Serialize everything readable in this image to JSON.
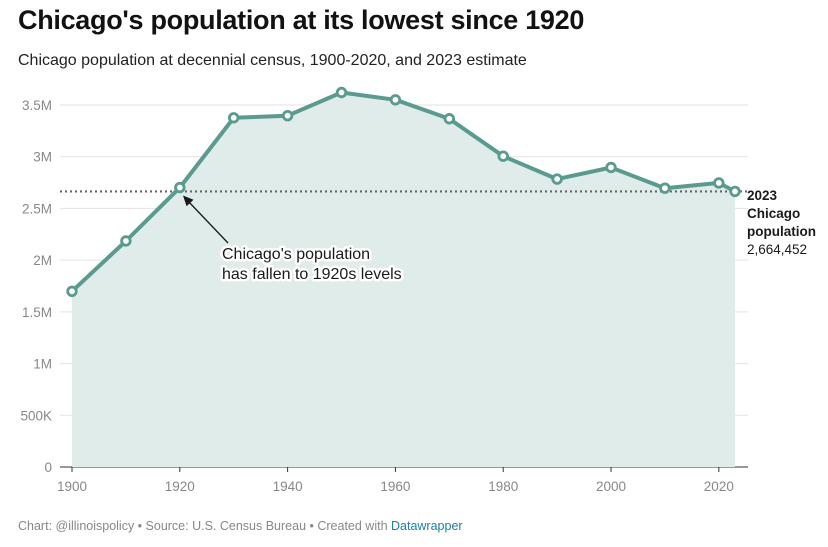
{
  "header": {
    "title": "Chicago's population at its lowest since 1920",
    "subtitle": "Chicago population at decennial census, 1900-2020, and 2023 estimate"
  },
  "footer": {
    "chart_prefix": "Chart: ",
    "chart_by": "@illinoispolicy",
    "source": " • Source: U.S. Census Bureau • Created with ",
    "tool": "Datawrapper"
  },
  "chart_data": {
    "type": "area",
    "title": "Chicago's population at its lowest since 1920",
    "subtitle": "Chicago population at decennial census, 1900-2020, and 2023 estimate",
    "x": [
      1900,
      1910,
      1920,
      1930,
      1940,
      1950,
      1960,
      1970,
      1980,
      1990,
      2000,
      2010,
      2020,
      2023
    ],
    "values": [
      1698575,
      2185283,
      2701705,
      3376438,
      3396808,
      3620962,
      3550404,
      3366957,
      3005072,
      2783726,
      2896016,
      2695598,
      2746388,
      2664452
    ],
    "xlim": [
      1900,
      2023
    ],
    "ylim": [
      0,
      3500000
    ],
    "x_ticks": [
      {
        "value": 1900,
        "label": "1900"
      },
      {
        "value": 1920,
        "label": "1920"
      },
      {
        "value": 1940,
        "label": "1940"
      },
      {
        "value": 1960,
        "label": "1960"
      },
      {
        "value": 1980,
        "label": "1980"
      },
      {
        "value": 2000,
        "label": "2000"
      },
      {
        "value": 2020,
        "label": "2020"
      }
    ],
    "y_ticks": [
      {
        "value": 0,
        "label": "0"
      },
      {
        "value": 500000,
        "label": "500K"
      },
      {
        "value": 1000000,
        "label": "1M"
      },
      {
        "value": 1500000,
        "label": "1.5M"
      },
      {
        "value": 2000000,
        "label": "2M"
      },
      {
        "value": 2500000,
        "label": "2.5M"
      },
      {
        "value": 3000000,
        "label": "3M"
      },
      {
        "value": 3500000,
        "label": "3.5M"
      }
    ],
    "grid": true,
    "reference_line": {
      "value": 2664452,
      "style": "dotted"
    },
    "annotation": {
      "lines": [
        "Chicago's population",
        "has fallen to 1920s levels"
      ],
      "points_to": {
        "x": 1920,
        "value": 2701705
      }
    },
    "end_label": {
      "bold_lines": [
        "2023",
        "Chicago",
        "population"
      ],
      "value_text": "2,664,452"
    },
    "colors": {
      "line": "#5a9a8f",
      "area": "#e0ece9",
      "grid": "#e3e3e3",
      "reference": "#666666",
      "axis_text": "#888888"
    }
  }
}
